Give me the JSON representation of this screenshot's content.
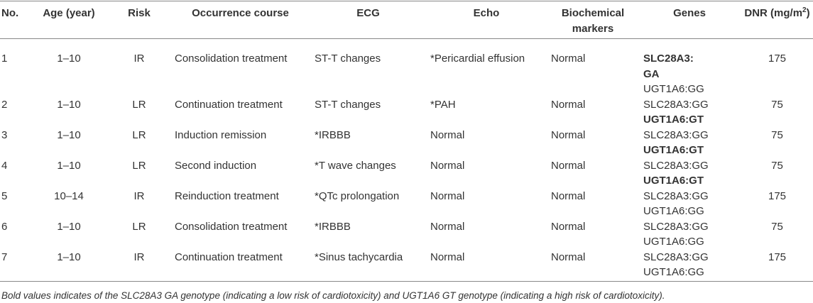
{
  "table": {
    "header": [
      "No.",
      "Age (year)",
      "Risk",
      "Occurrence course",
      "ECG",
      "Echo",
      "Biochemical markers",
      "Genes",
      [
        "DNR (mg/m",
        "2",
        ")"
      ]
    ],
    "rows": [
      [
        1,
        "1–10",
        "IR",
        "Consolidation treatment",
        "ST-T changes",
        "*Pericardial effusion",
        "Normal",
        [
          {
            "text": "SLC28A3: GA",
            "bold": true
          },
          {
            "text": "UGT1A6:GG",
            "bold": false
          }
        ],
        175
      ],
      [
        2,
        "1–10",
        "LR",
        "Continuation treatment",
        "ST-T changes",
        "*PAH",
        "Normal",
        [
          {
            "text": "SLC28A3:GG",
            "bold": false
          },
          {
            "text": "UGT1A6:GT",
            "bold": true
          }
        ],
        75
      ],
      [
        3,
        "1–10",
        "LR",
        "Induction remission",
        "*IRBBB",
        "Normal",
        "Normal",
        [
          {
            "text": "SLC28A3:GG",
            "bold": false
          },
          {
            "text": "UGT1A6:GT",
            "bold": true
          }
        ],
        75
      ],
      [
        4,
        "1–10",
        "LR",
        "Second induction",
        "*T wave changes",
        "Normal",
        "Normal",
        [
          {
            "text": "SLC28A3:GG",
            "bold": false
          },
          {
            "text": "UGT1A6:GT",
            "bold": true
          }
        ],
        75
      ],
      [
        5,
        "10–14",
        "IR",
        "Reinduction treatment",
        "*QTc prolongation",
        "Normal",
        "Normal",
        [
          {
            "text": "SLC28A3:GG",
            "bold": false
          },
          {
            "text": "UGT1A6:GG",
            "bold": false
          }
        ],
        175
      ],
      [
        6,
        "1–10",
        "LR",
        "Consolidation treatment",
        "*IRBBB",
        "Normal",
        "Normal",
        [
          {
            "text": "SLC28A3:GG",
            "bold": false
          },
          {
            "text": "UGT1A6:GG",
            "bold": false
          }
        ],
        75
      ],
      [
        7,
        "1–10",
        "IR",
        "Continuation treatment",
        "*Sinus tachycardia",
        "Normal",
        "Normal",
        [
          {
            "text": "SLC28A3:GG",
            "bold": false
          },
          {
            "text": "UGT1A6:GG",
            "bold": false
          }
        ],
        175
      ]
    ],
    "footnote": "Bold values indicates of the SLC28A3 GA genotype (indicating a low risk of cardiotoxicity) and UGT1A6 GT genotype (indicating a high risk of cardiotoxicity)."
  }
}
